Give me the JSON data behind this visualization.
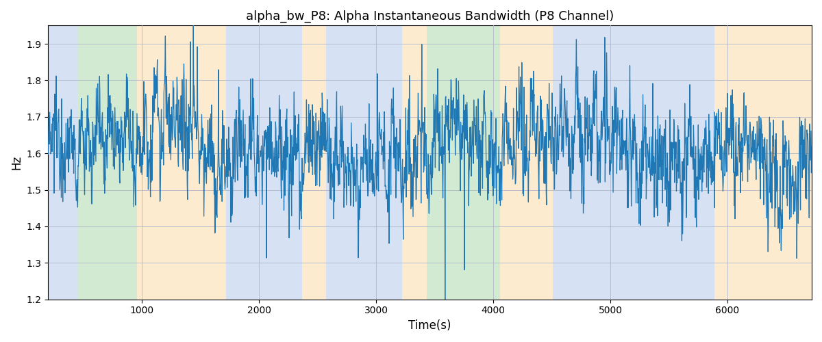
{
  "title": "alpha_bw_P8: Alpha Instantaneous Bandwidth (P8 Channel)",
  "xlabel": "Time(s)",
  "ylabel": "Hz",
  "ylim": [
    1.2,
    1.95
  ],
  "xlim": [
    200,
    6720
  ],
  "xticks": [
    1000,
    2000,
    3000,
    4000,
    5000,
    6000
  ],
  "yticks": [
    1.2,
    1.3,
    1.4,
    1.5,
    1.6,
    1.7,
    1.8,
    1.9
  ],
  "line_color": "#1f77b4",
  "line_width": 0.9,
  "background_color": "#ffffff",
  "grid_color": "#b0b8c8",
  "bands": [
    {
      "xmin": 200,
      "xmax": 450,
      "color": "#aec6e8",
      "alpha": 0.5
    },
    {
      "xmin": 450,
      "xmax": 960,
      "color": "#90c890",
      "alpha": 0.4
    },
    {
      "xmin": 960,
      "xmax": 1720,
      "color": "#fdd9a0",
      "alpha": 0.5
    },
    {
      "xmin": 1720,
      "xmax": 2370,
      "color": "#aec6e8",
      "alpha": 0.5
    },
    {
      "xmin": 2370,
      "xmax": 2570,
      "color": "#fdd9a0",
      "alpha": 0.5
    },
    {
      "xmin": 2570,
      "xmax": 3220,
      "color": "#aec6e8",
      "alpha": 0.5
    },
    {
      "xmin": 3220,
      "xmax": 3430,
      "color": "#fdd9a0",
      "alpha": 0.5
    },
    {
      "xmin": 3430,
      "xmax": 4060,
      "color": "#90c890",
      "alpha": 0.4
    },
    {
      "xmin": 4060,
      "xmax": 4510,
      "color": "#fdd9a0",
      "alpha": 0.5
    },
    {
      "xmin": 4510,
      "xmax": 5890,
      "color": "#aec6e8",
      "alpha": 0.5
    },
    {
      "xmin": 5890,
      "xmax": 6720,
      "color": "#fdd9a0",
      "alpha": 0.5
    }
  ],
  "seed": 12345,
  "n_points": 2100,
  "time_start": 200,
  "time_end": 6720
}
